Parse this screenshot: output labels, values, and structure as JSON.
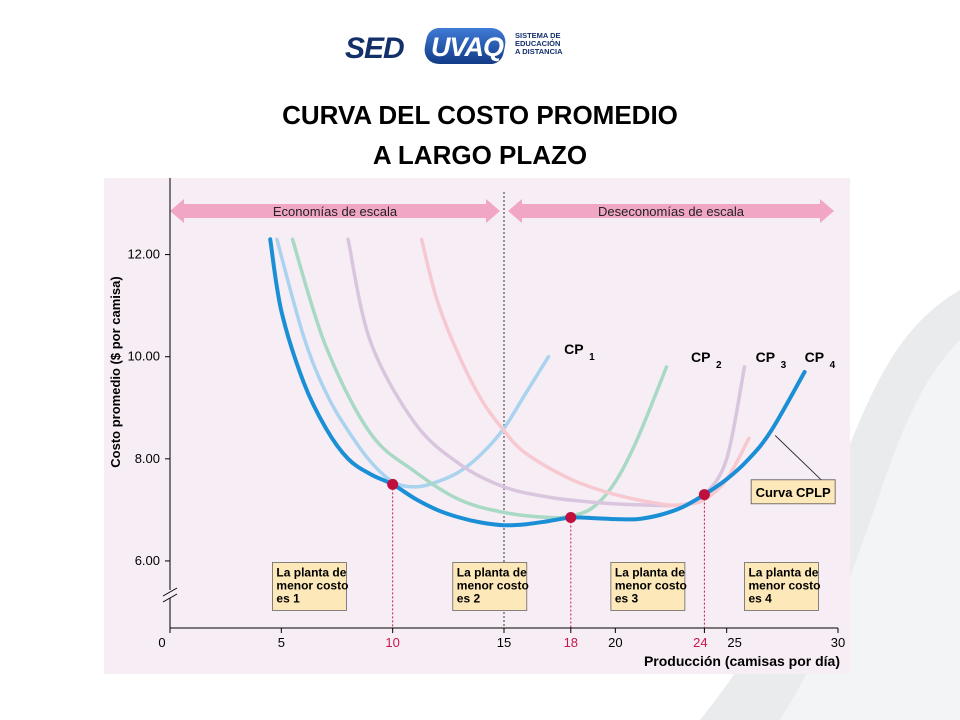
{
  "slide": {
    "title_line1": "CURVA DEL COSTO PROMEDIO",
    "title_line2": "A LARGO PLAZO"
  },
  "logo": {
    "text_left": "SED",
    "text_badge": "UVAQ",
    "subtitle": [
      "SISTEMA DE",
      "EDUCACIÓN",
      "A DISTANCIA"
    ]
  },
  "chart_data": {
    "type": "line",
    "xlabel": "Producción (camisas por día)",
    "ylabel": "Costo promedio ($ por camisa)",
    "xlim": [
      0,
      30
    ],
    "ylim": [
      5.0,
      13.5
    ],
    "axis_break": true,
    "x_ticks": [
      0,
      5,
      10,
      15,
      18,
      20,
      24,
      25,
      30
    ],
    "x_ticks_highlight": [
      10,
      18,
      24
    ],
    "y_ticks": [
      6.0,
      8.0,
      10.0,
      12.0
    ],
    "y_tick_labels": [
      "6.00",
      "8.00",
      "10.00",
      "12.00"
    ],
    "regions": [
      {
        "label": "Economías de escala",
        "x_start": 0,
        "x_end": 15
      },
      {
        "label": "Deseconomías de escala",
        "x_start": 15,
        "x_end": 30
      }
    ],
    "divider_x": 15,
    "series": [
      {
        "name": "CP",
        "subscript": "1",
        "color": "#a9d3ef",
        "x": [
          4.8,
          6,
          7,
          8,
          9,
          10,
          11,
          12,
          13,
          14,
          15,
          16,
          17
        ],
        "y": [
          12.3,
          10.4,
          9.3,
          8.55,
          7.95,
          7.55,
          7.45,
          7.55,
          7.75,
          8.1,
          8.6,
          9.3,
          10.0
        ]
      },
      {
        "name": "CP",
        "subscript": "2",
        "color": "#a8d9c4",
        "x": [
          5.5,
          7,
          9,
          11,
          13,
          15,
          17,
          18,
          19,
          20,
          21,
          22.3
        ],
        "y": [
          12.3,
          10.2,
          8.5,
          7.75,
          7.2,
          6.95,
          6.85,
          6.88,
          7.05,
          7.55,
          8.4,
          9.8
        ]
      },
      {
        "name": "CP",
        "subscript": "3",
        "color": "#d9c6de",
        "x": [
          8.0,
          9,
          11,
          13,
          15,
          17,
          19,
          21,
          23,
          24,
          25,
          25.8
        ],
        "y": [
          12.3,
          10.3,
          8.7,
          7.9,
          7.45,
          7.25,
          7.15,
          7.1,
          7.1,
          7.3,
          8.0,
          9.8
        ]
      },
      {
        "name": "CP",
        "subscript": "4",
        "color": "#f7c8cf",
        "x": [
          11.3,
          12,
          13,
          14,
          15,
          16,
          18,
          20,
          22,
          23,
          24,
          25,
          26
        ],
        "y": [
          12.3,
          11.1,
          10.0,
          9.15,
          8.55,
          8.1,
          7.6,
          7.3,
          7.12,
          7.1,
          7.2,
          7.6,
          8.4
        ]
      },
      {
        "name": "Curva CPLP",
        "color": "#1a8fd6",
        "x": [
          4.5,
          5,
          6,
          7,
          8,
          9,
          10,
          11,
          12,
          13,
          14,
          15,
          16,
          17,
          18,
          19,
          20,
          21,
          22,
          23,
          24,
          25,
          26,
          27,
          28.5
        ],
        "y": [
          12.3,
          10.9,
          9.5,
          8.6,
          8.0,
          7.7,
          7.5,
          7.22,
          7.0,
          6.85,
          6.75,
          6.7,
          6.72,
          6.78,
          6.85,
          6.84,
          6.82,
          6.82,
          6.9,
          7.05,
          7.3,
          7.6,
          8.0,
          8.55,
          9.7
        ]
      }
    ],
    "series_label_positions": [
      {
        "series": 0,
        "x": 17.7,
        "y": 10.05
      },
      {
        "series": 1,
        "x": 23.4,
        "y": 9.9
      },
      {
        "series": 2,
        "x": 26.3,
        "y": 9.9
      },
      {
        "series": 3,
        "x": 28.5,
        "y": 9.9
      }
    ],
    "optimal_points": [
      {
        "x": 10,
        "y": 7.5
      },
      {
        "x": 18,
        "y": 6.85
      },
      {
        "x": 24,
        "y": 7.3
      }
    ],
    "annotations": [
      {
        "text": [
          "La planta de",
          "menor costo",
          "es 1"
        ],
        "x": 4.6,
        "y": 5.97
      },
      {
        "text": [
          "La planta de",
          "menor costo",
          "es 2"
        ],
        "x": 12.7,
        "y": 5.97
      },
      {
        "text": [
          "La planta de",
          "menor costo",
          "es 3"
        ],
        "x": 19.8,
        "y": 5.97
      },
      {
        "text": [
          "La planta de",
          "menor costo",
          "es 4"
        ],
        "x": 25.8,
        "y": 5.97
      }
    ],
    "cplp_label": {
      "text": "Curva CPLP",
      "x": 26.1,
      "y": 7.55,
      "pointer_x": 27.0,
      "pointer_y": 8.3
    },
    "colors": {
      "background": "#f7edf5",
      "axis": "#000000",
      "arrow": "#f0a6c4",
      "highlight": "#c8174a",
      "dot": "#be0f3e",
      "note_box": "#fde8b9"
    }
  }
}
